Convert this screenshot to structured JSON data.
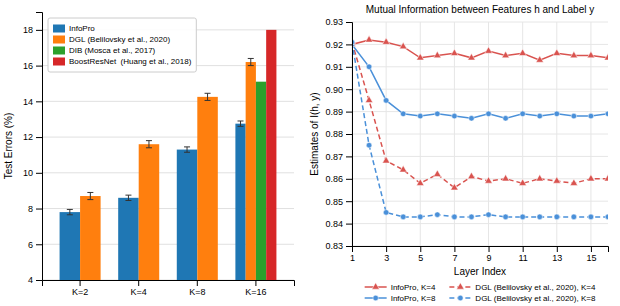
{
  "chart_data": [
    {
      "type": "bar",
      "categories": [
        "K=2",
        "K=4",
        "K=8",
        "K=16"
      ],
      "ylabel": "Test Errors (%)",
      "series": [
        {
          "name": "InfoPro",
          "values": [
            7.8,
            8.6,
            11.3,
            12.75
          ],
          "errors": [
            0.15,
            0.15,
            0.15,
            0.15
          ]
        },
        {
          "name": "DGL (Belilovsky et al., 2020)",
          "values": [
            8.7,
            11.6,
            14.25,
            16.2
          ],
          "errors": [
            0.2,
            0.2,
            0.2,
            0.2
          ]
        },
        {
          "name": "DIB (Mosca et al., 2017)",
          "values": [
            null,
            null,
            null,
            15.1
          ]
        },
        {
          "name": "BoostResNet  (Huang et al., 2018)",
          "values": [
            null,
            null,
            null,
            18.0
          ]
        }
      ],
      "ylim": [
        4,
        19
      ],
      "yticks": [
        4,
        6,
        8,
        10,
        12,
        14,
        16,
        18
      ],
      "grid": true,
      "legend": "upper left"
    },
    {
      "type": "line",
      "title": "Mutual Information between Features h and Label y",
      "xlabel": "Layer Index",
      "ylabel": "Estimates of I(h, y)",
      "x": [
        1,
        2,
        3,
        4,
        5,
        6,
        7,
        8,
        9,
        10,
        11,
        12,
        13,
        14,
        15,
        16
      ],
      "series": [
        {
          "name": "InfoPro, K=4",
          "color": "#d9534f",
          "marker": "triangle",
          "line_style": "solid",
          "values": [
            0.92,
            0.922,
            0.921,
            0.919,
            0.914,
            0.915,
            0.916,
            0.914,
            0.917,
            0.915,
            0.916,
            0.913,
            0.916,
            0.915,
            0.915,
            0.914
          ]
        },
        {
          "name": "InfoPro, K=8",
          "color": "#4a90d9",
          "marker": "circle",
          "line_style": "solid",
          "values": [
            0.92,
            0.91,
            0.895,
            0.889,
            0.888,
            0.889,
            0.888,
            0.887,
            0.889,
            0.887,
            0.889,
            0.888,
            0.889,
            0.888,
            0.888,
            0.889
          ]
        },
        {
          "name": "DGL (Belilovsky et al., 2020), K=4",
          "color": "#d9534f",
          "marker": "triangle",
          "line_style": "dashed",
          "values": [
            0.921,
            0.895,
            0.868,
            0.864,
            0.858,
            0.862,
            0.856,
            0.861,
            0.859,
            0.86,
            0.858,
            0.86,
            0.859,
            0.858,
            0.86,
            0.86
          ]
        },
        {
          "name": "DGL (Belilovsky et al., 2020), K=8",
          "color": "#4a90d9",
          "marker": "circle",
          "line_style": "dashed",
          "values": [
            0.921,
            0.875,
            0.845,
            0.843,
            0.843,
            0.844,
            0.843,
            0.843,
            0.844,
            0.843,
            0.843,
            0.843,
            0.843,
            0.843,
            0.843,
            0.843
          ]
        }
      ],
      "xlim": [
        1,
        16
      ],
      "xticks": [
        1,
        3,
        5,
        7,
        9,
        11,
        13,
        15
      ],
      "ylim": [
        0.83,
        0.93
      ],
      "yticks": [
        0.83,
        0.84,
        0.85,
        0.86,
        0.87,
        0.88,
        0.89,
        {
          "value": 0.9,
          "label": "0.90"
        },
        0.91,
        0.92,
        0.93
      ],
      "grid": true,
      "legend": "bottom"
    }
  ]
}
